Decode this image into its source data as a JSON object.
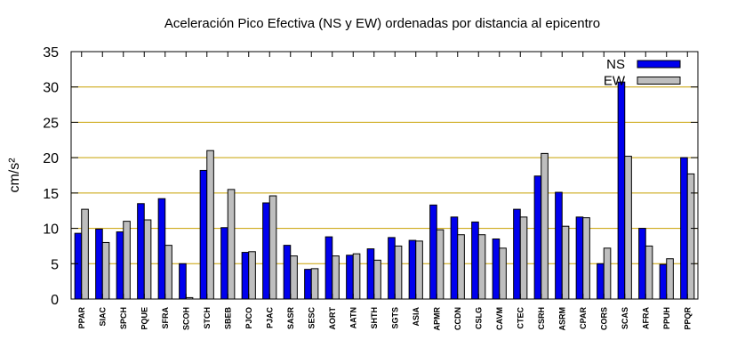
{
  "chart_data": {
    "type": "bar",
    "title": "Aceleración Pico Efectiva (NS y EW) ordenadas por distancia al epicentro",
    "ylabel": "cm/s²",
    "xlabel": "",
    "ylim": [
      0,
      35
    ],
    "yticks": [
      0,
      5,
      10,
      15,
      20,
      25,
      30,
      35
    ],
    "grid": "horizontal",
    "legend_position": "top-right",
    "categories": [
      "PPAR",
      "SIAC",
      "SPCH",
      "PQUE",
      "SFRA",
      "SCOH",
      "STCH",
      "SBEB",
      "PJCO",
      "PJAC",
      "SASR",
      "SESC",
      "AORT",
      "AATN",
      "SHTH",
      "SGTS",
      "ASIA",
      "APMR",
      "CCDN",
      "CSLG",
      "CAVM",
      "CTEC",
      "CSRH",
      "ASRM",
      "CPAR",
      "CORS",
      "SCAS",
      "AFRA",
      "PPUH",
      "PPQR"
    ],
    "series": [
      {
        "name": "NS",
        "color": "#0000ee",
        "values": [
          9.3,
          9.9,
          9.5,
          13.5,
          14.2,
          5.0,
          18.2,
          10.1,
          6.6,
          13.6,
          7.6,
          4.2,
          8.8,
          6.2,
          7.1,
          8.7,
          8.3,
          13.3,
          11.6,
          10.9,
          8.5,
          12.7,
          17.4,
          15.1,
          11.6,
          5.0,
          30.7,
          10.0,
          4.9,
          20.0
        ]
      },
      {
        "name": "EW",
        "color": "#bebebe",
        "values": [
          12.7,
          8.0,
          11.0,
          11.2,
          7.6,
          0.2,
          21.0,
          15.5,
          6.7,
          14.6,
          6.1,
          4.3,
          6.1,
          6.4,
          5.5,
          7.5,
          8.2,
          9.8,
          9.1,
          9.1,
          7.2,
          11.6,
          20.6,
          10.3,
          11.5,
          7.2,
          20.2,
          7.5,
          5.7,
          17.7
        ]
      }
    ]
  }
}
